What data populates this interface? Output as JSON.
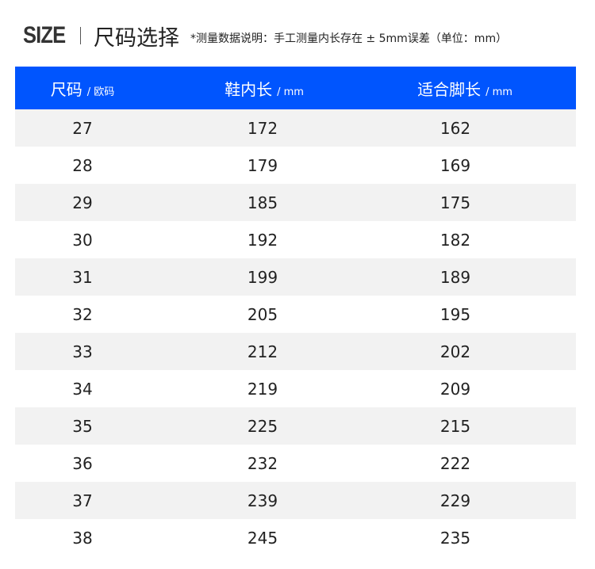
{
  "title": {
    "en": "SIZE",
    "cn": "尺码选择",
    "note": "*测量数据说明：手工测量内长存在 ± 5mm误差（单位：mm）"
  },
  "header": [
    {
      "label": "尺码",
      "unit": "/ 欧码"
    },
    {
      "label": "鞋内长",
      "unit": "/ mm"
    },
    {
      "label": "适合脚长",
      "unit": "/ mm"
    }
  ],
  "colors": {
    "header_bg": "#0055fe",
    "stripe": "#f2f2f2"
  },
  "rows": [
    [
      "27",
      "172",
      "162"
    ],
    [
      "28",
      "179",
      "169"
    ],
    [
      "29",
      "185",
      "175"
    ],
    [
      "30",
      "192",
      "182"
    ],
    [
      "31",
      "199",
      "189"
    ],
    [
      "32",
      "205",
      "195"
    ],
    [
      "33",
      "212",
      "202"
    ],
    [
      "34",
      "219",
      "209"
    ],
    [
      "35",
      "225",
      "215"
    ],
    [
      "36",
      "232",
      "222"
    ],
    [
      "37",
      "239",
      "229"
    ],
    [
      "38",
      "245",
      "235"
    ]
  ]
}
